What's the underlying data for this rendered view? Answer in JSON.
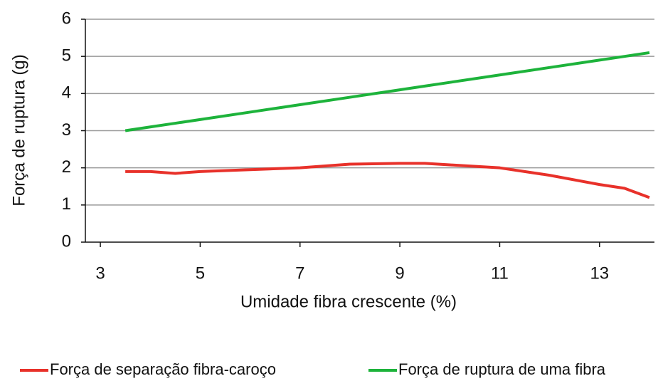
{
  "chart_data": {
    "type": "line",
    "x_label": "Umidade fibra crescente (%)",
    "y_label": "Força de ruptura (g)",
    "x": [
      3.5,
      4,
      4.5,
      5,
      6,
      7,
      8,
      9,
      9.5,
      10,
      11,
      12,
      13,
      13.5,
      14
    ],
    "series": [
      {
        "name": "Força de separação fibra-caroço",
        "color": "#e8312a",
        "values": [
          1.9,
          1.9,
          1.85,
          1.9,
          1.95,
          2.0,
          2.1,
          2.12,
          2.12,
          2.08,
          2.0,
          1.8,
          1.55,
          1.45,
          1.2
        ]
      },
      {
        "name": "Força de ruptura de uma fibra",
        "color": "#1db33b",
        "values": [
          3.0,
          3.1,
          3.2,
          3.3,
          3.5,
          3.7,
          3.9,
          4.1,
          4.2,
          4.3,
          4.5,
          4.7,
          4.9,
          5.0,
          5.1
        ]
      }
    ],
    "xlim": [
      2.7,
      14.1
    ],
    "xticks": [
      3,
      5,
      7,
      9,
      11,
      13
    ],
    "ylim": [
      0,
      6
    ],
    "yticks": [
      0,
      1,
      2,
      3,
      4,
      5,
      6
    ],
    "grid": true,
    "legend": "bottom"
  }
}
